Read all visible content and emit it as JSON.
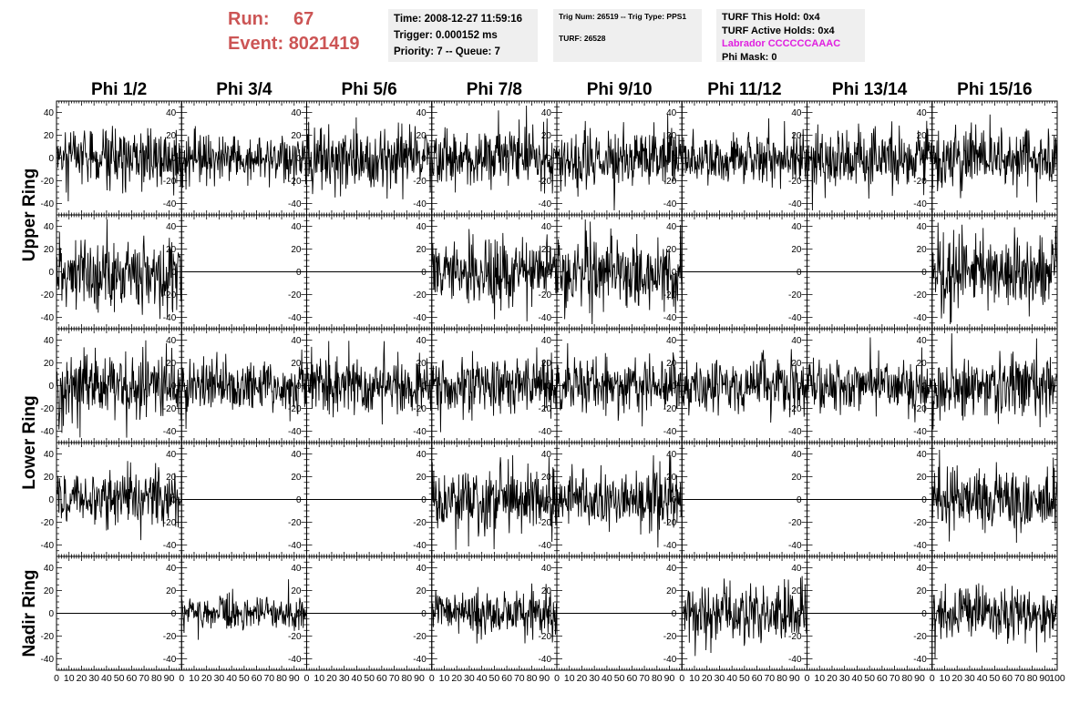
{
  "header": {
    "run_label": "Run:",
    "run_value": "67",
    "event_label": "Event:",
    "event_value": "8021419",
    "time": "Time: 2008-12-27 11:59:16",
    "trigger": "Trigger: 0.000152 ms",
    "priority": "Priority: 7 -- Queue: 7",
    "trig_num": "Trig Num: 26519 -- Trig Type: PPS1",
    "turf": "TURF: 26528",
    "turf_this_hold": "TURF This Hold: 0x4",
    "turf_active_holds": "TURF Active Holds: 0x4",
    "labrador": "Labrador CCCCCCAAAC",
    "phi_mask": "Phi Mask: 0"
  },
  "colors": {
    "header_text": "#cc5555",
    "labrador_text": "#e020e0",
    "info_bg": "#efefef",
    "trace": "#000000"
  },
  "chart_data": {
    "type": "line",
    "layout": "grid 5 rows x 8 columns of waveform panels",
    "columns": [
      "Phi 1/2",
      "Phi 3/4",
      "Phi 5/6",
      "Phi 7/8",
      "Phi 9/10",
      "Phi 11/12",
      "Phi 13/14",
      "Phi 15/16"
    ],
    "row_labels": [
      "Upper Ring",
      "Lower Ring",
      "Nadir Ring"
    ],
    "row_label_spans": [
      [
        0,
        1
      ],
      [
        2,
        3
      ],
      [
        4,
        4
      ]
    ],
    "ylim": [
      -50,
      50
    ],
    "yticks": [
      "40",
      "20",
      "0",
      "-20",
      "-40"
    ],
    "xlim": [
      0,
      100
    ],
    "xtick_labels": [
      "0",
      "10",
      "20",
      "30",
      "40",
      "50",
      "60",
      "70",
      "80",
      "90",
      "100"
    ],
    "samples_per_trace": 256,
    "panels": [
      [
        {
          "col": "Phi 1/2",
          "active": true,
          "amplitude": 14,
          "seed": 11
        },
        {
          "col": "Phi 3/4",
          "active": true,
          "amplitude": 11,
          "seed": 12
        },
        {
          "col": "Phi 5/6",
          "active": true,
          "amplitude": 15,
          "seed": 13
        },
        {
          "col": "Phi 7/8",
          "active": true,
          "amplitude": 14,
          "seed": 14
        },
        {
          "col": "Phi 9/10",
          "active": true,
          "amplitude": 13,
          "seed": 15
        },
        {
          "col": "Phi 11/12",
          "active": true,
          "amplitude": 11,
          "seed": 16
        },
        {
          "col": "Phi 13/14",
          "active": true,
          "amplitude": 15,
          "seed": 17
        },
        {
          "col": "Phi 15/16",
          "active": true,
          "amplitude": 14,
          "seed": 18
        }
      ],
      [
        {
          "col": "Phi 1/2",
          "active": true,
          "amplitude": 17,
          "seed": 21
        },
        {
          "col": "Phi 3/4",
          "active": false
        },
        {
          "col": "Phi 5/6",
          "active": false
        },
        {
          "col": "Phi 7/8",
          "active": true,
          "amplitude": 16,
          "seed": 24
        },
        {
          "col": "Phi 9/10",
          "active": true,
          "amplitude": 17,
          "seed": 25
        },
        {
          "col": "Phi 11/12",
          "active": false
        },
        {
          "col": "Phi 13/14",
          "active": false
        },
        {
          "col": "Phi 15/16",
          "active": true,
          "amplitude": 18,
          "seed": 28
        }
      ],
      [
        {
          "col": "Phi 1/2",
          "active": true,
          "amplitude": 16,
          "seed": 31
        },
        {
          "col": "Phi 3/4",
          "active": true,
          "amplitude": 13,
          "seed": 32
        },
        {
          "col": "Phi 5/6",
          "active": true,
          "amplitude": 14,
          "seed": 33
        },
        {
          "col": "Phi 7/8",
          "active": true,
          "amplitude": 14,
          "seed": 34
        },
        {
          "col": "Phi 9/10",
          "active": true,
          "amplitude": 13,
          "seed": 35
        },
        {
          "col": "Phi 11/12",
          "active": true,
          "amplitude": 13,
          "seed": 36
        },
        {
          "col": "Phi 13/14",
          "active": true,
          "amplitude": 13,
          "seed": 37
        },
        {
          "col": "Phi 15/16",
          "active": true,
          "amplitude": 14,
          "seed": 38
        }
      ],
      [
        {
          "col": "Phi 1/2",
          "active": true,
          "amplitude": 13,
          "seed": 41
        },
        {
          "col": "Phi 3/4",
          "active": false
        },
        {
          "col": "Phi 5/6",
          "active": false
        },
        {
          "col": "Phi 7/8",
          "active": true,
          "amplitude": 16,
          "seed": 44
        },
        {
          "col": "Phi 9/10",
          "active": true,
          "amplitude": 14,
          "seed": 45
        },
        {
          "col": "Phi 11/12",
          "active": false
        },
        {
          "col": "Phi 13/14",
          "active": false
        },
        {
          "col": "Phi 15/16",
          "active": true,
          "amplitude": 16,
          "seed": 48
        }
      ],
      [
        {
          "col": "Phi 1/2",
          "active": false
        },
        {
          "col": "Phi 3/4",
          "active": true,
          "amplitude": 8,
          "seed": 52
        },
        {
          "col": "Phi 5/6",
          "active": false
        },
        {
          "col": "Phi 7/8",
          "active": true,
          "amplitude": 11,
          "seed": 54
        },
        {
          "col": "Phi 9/10",
          "active": false
        },
        {
          "col": "Phi 11/12",
          "active": true,
          "amplitude": 14,
          "seed": 56
        },
        {
          "col": "Phi 13/14",
          "active": false
        },
        {
          "col": "Phi 15/16",
          "active": true,
          "amplitude": 12,
          "seed": 58
        }
      ]
    ]
  }
}
